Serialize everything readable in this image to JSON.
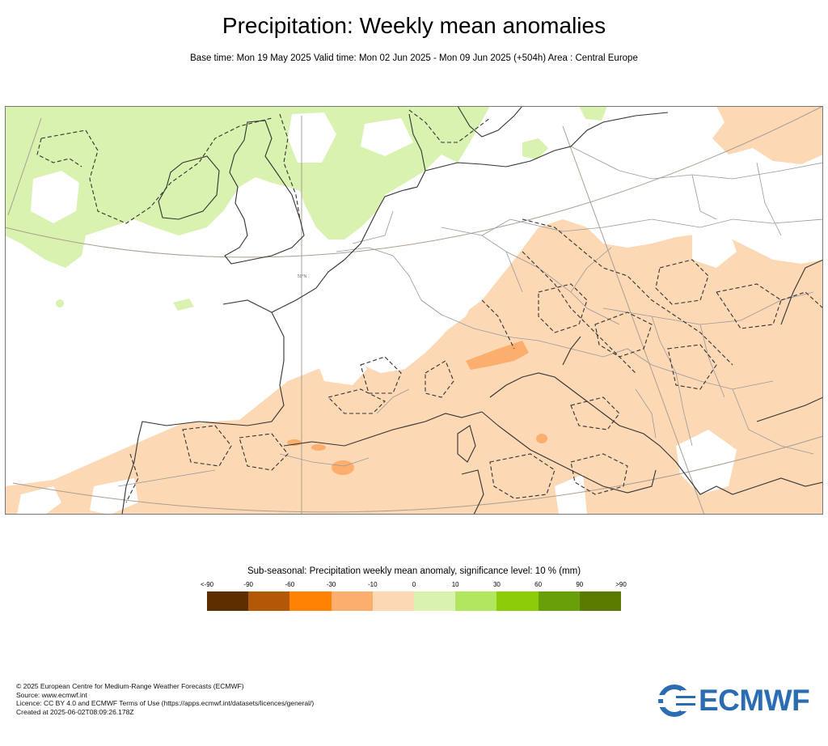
{
  "title": "Precipitation: Weekly mean anomalies",
  "subtitle": "Base time: Mon 19 May 2025 Valid time: Mon 02 Jun 2025 - Mon 09 Jun 2025 (+504h) Area : Central Europe",
  "map": {
    "area": "Central Europe",
    "graticule_label": "50°N",
    "land_color": "#ffffff",
    "coast_color": "#333333",
    "border_color": "#999999",
    "graticule_color": "#a89f92",
    "anomaly_neg_color": "#fdd8b5",
    "anomaly_neg_strong_color": "#fcae6e",
    "anomaly_pos_color": "#d9f2af"
  },
  "legend": {
    "title": "Sub-seasonal: Precipitation weekly mean anomaly, significance level: 10 % (mm)",
    "labels": [
      "<-90",
      "-90",
      "-60",
      "-30",
      "-10",
      "0",
      "10",
      "30",
      "60",
      "90",
      ">90"
    ],
    "colors": [
      "#5c2e00",
      "#b35806",
      "#fe8305",
      "#fcae6e",
      "#fdd8b5",
      "#d9f2af",
      "#b3e65f",
      "#8ccd08",
      "#69a00a",
      "#5a7a00"
    ]
  },
  "footer": {
    "lines": [
      "© 2025 European Centre for Medium-Range Weather Forecasts (ECMWF)",
      "Source: www.ecmwf.int",
      "Licence: CC BY 4.0 and ECMWF Terms of Use (https://apps.ecmwf.int/datasets/licences/general/)",
      "Created at 2025-06-02T08:09:26.178Z"
    ]
  },
  "logo": {
    "text": "ECMWF",
    "color": "#2a6db1"
  }
}
